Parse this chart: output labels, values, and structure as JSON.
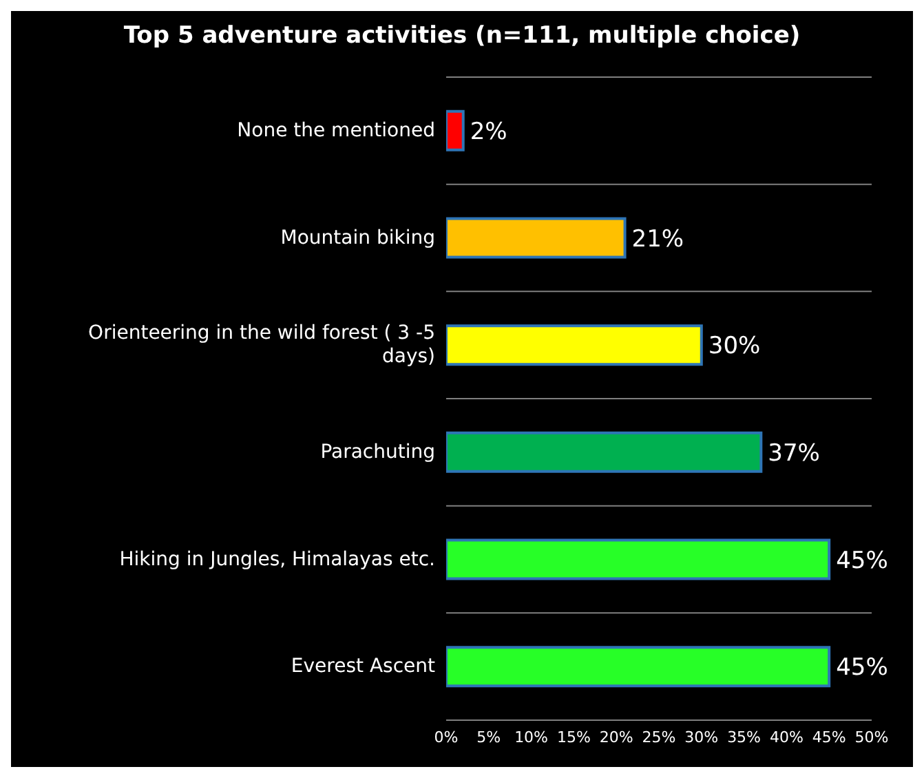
{
  "chart_data": {
    "type": "bar",
    "orientation": "horizontal",
    "title": "Top 5 adventure activities (n=111, multiple choice)",
    "categories": [
      "None the mentioned",
      "Mountain biking",
      "Orienteering in the wild forest ( 3 -5 days)",
      "Parachuting",
      "Hiking in Jungles, Himalayas etc.",
      "Everest Ascent"
    ],
    "values": [
      2,
      21,
      30,
      37,
      45,
      45
    ],
    "colors": [
      "#ff0000",
      "#ffc000",
      "#ffff00",
      "#00b050",
      "#27ff27",
      "#27ff27"
    ],
    "value_labels": [
      "2%",
      "21%",
      "30%",
      "37%",
      "45%",
      "45%"
    ],
    "xlim": [
      0,
      50
    ],
    "xticks": [
      {
        "value": 0,
        "label": "0%"
      },
      {
        "value": 5,
        "label": "5%"
      },
      {
        "value": 10,
        "label": "10%"
      },
      {
        "value": 15,
        "label": "15%"
      },
      {
        "value": 20,
        "label": "20%"
      },
      {
        "value": 25,
        "label": "25%"
      },
      {
        "value": 30,
        "label": "30%"
      },
      {
        "value": 35,
        "label": "35%"
      },
      {
        "value": 40,
        "label": "40%"
      },
      {
        "value": 45,
        "label": "45%"
      },
      {
        "value": 50,
        "label": "50%"
      }
    ],
    "grid": "y",
    "legend": false
  }
}
